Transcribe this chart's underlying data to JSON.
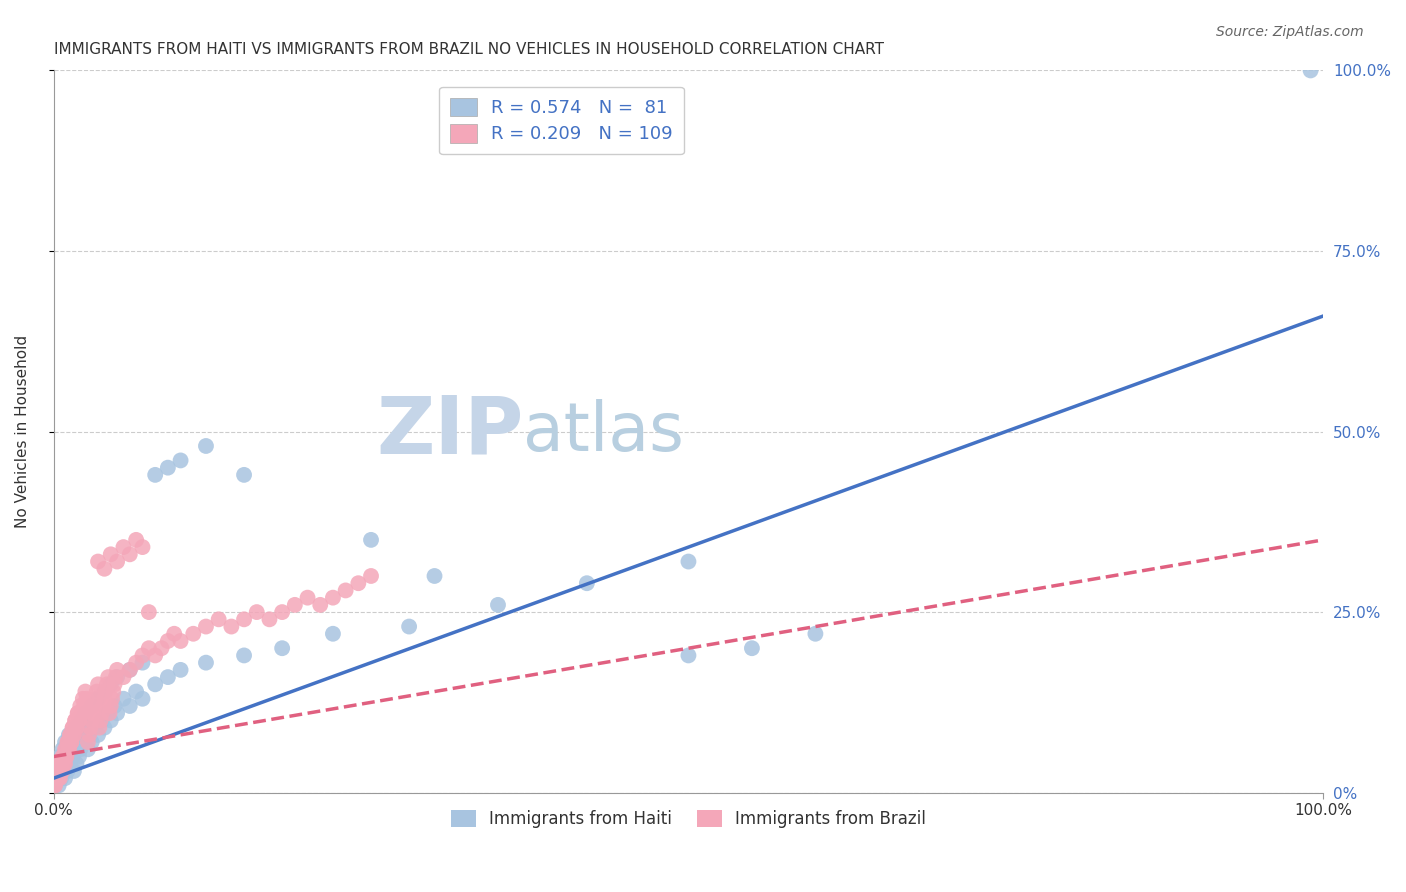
{
  "title": "IMMIGRANTS FROM HAITI VS IMMIGRANTS FROM BRAZIL NO VEHICLES IN HOUSEHOLD CORRELATION CHART",
  "source": "Source: ZipAtlas.com",
  "ylabel": "No Vehicles in Household",
  "series": [
    {
      "name": "Immigrants from Haiti",
      "R": 0.574,
      "N": 81,
      "color": "#a8c4e0",
      "line_color": "#4472c4",
      "line_style": "solid",
      "line_x0": 0.0,
      "line_y0": 0.02,
      "line_x1": 1.0,
      "line_y1": 0.66,
      "scatter_x": [
        0.001,
        0.002,
        0.003,
        0.004,
        0.005,
        0.006,
        0.007,
        0.008,
        0.009,
        0.01,
        0.011,
        0.012,
        0.013,
        0.014,
        0.015,
        0.016,
        0.017,
        0.018,
        0.019,
        0.02,
        0.021,
        0.022,
        0.023,
        0.024,
        0.025,
        0.027,
        0.03,
        0.032,
        0.035,
        0.038,
        0.04,
        0.042,
        0.045,
        0.048,
        0.05,
        0.055,
        0.06,
        0.065,
        0.07,
        0.08,
        0.09,
        0.1,
        0.12,
        0.15,
        0.18,
        0.22,
        0.28,
        0.35,
        0.42,
        0.5,
        0.003,
        0.004,
        0.005,
        0.006,
        0.007,
        0.008,
        0.009,
        0.01,
        0.012,
        0.015,
        0.018,
        0.022,
        0.025,
        0.03,
        0.035,
        0.04,
        0.045,
        0.05,
        0.06,
        0.07,
        0.08,
        0.09,
        0.1,
        0.12,
        0.15,
        0.5,
        0.55,
        0.6,
        0.25,
        0.3,
        0.99
      ],
      "scatter_y": [
        0.01,
        0.02,
        0.03,
        0.01,
        0.04,
        0.02,
        0.03,
        0.05,
        0.02,
        0.04,
        0.03,
        0.05,
        0.04,
        0.06,
        0.05,
        0.03,
        0.06,
        0.04,
        0.07,
        0.05,
        0.06,
        0.08,
        0.07,
        0.09,
        0.08,
        0.06,
        0.07,
        0.09,
        0.08,
        0.1,
        0.09,
        0.11,
        0.1,
        0.12,
        0.11,
        0.13,
        0.12,
        0.14,
        0.13,
        0.15,
        0.16,
        0.17,
        0.18,
        0.19,
        0.2,
        0.22,
        0.23,
        0.26,
        0.29,
        0.32,
        0.02,
        0.03,
        0.05,
        0.04,
        0.06,
        0.05,
        0.07,
        0.06,
        0.08,
        0.07,
        0.09,
        0.1,
        0.11,
        0.12,
        0.13,
        0.14,
        0.15,
        0.16,
        0.17,
        0.18,
        0.44,
        0.45,
        0.46,
        0.48,
        0.44,
        0.19,
        0.2,
        0.22,
        0.35,
        0.3,
        1.0
      ]
    },
    {
      "name": "Immigrants from Brazil",
      "R": 0.209,
      "N": 109,
      "color": "#f4a7b9",
      "line_color": "#e06080",
      "line_style": "dashed",
      "line_x0": 0.0,
      "line_y0": 0.05,
      "line_x1": 1.0,
      "line_y1": 0.35,
      "scatter_x": [
        0.001,
        0.002,
        0.003,
        0.003,
        0.004,
        0.005,
        0.005,
        0.006,
        0.007,
        0.008,
        0.009,
        0.01,
        0.01,
        0.011,
        0.012,
        0.013,
        0.014,
        0.015,
        0.016,
        0.017,
        0.018,
        0.019,
        0.02,
        0.021,
        0.022,
        0.023,
        0.024,
        0.025,
        0.026,
        0.027,
        0.028,
        0.029,
        0.03,
        0.031,
        0.032,
        0.033,
        0.034,
        0.035,
        0.036,
        0.037,
        0.038,
        0.039,
        0.04,
        0.041,
        0.042,
        0.043,
        0.044,
        0.045,
        0.046,
        0.047,
        0.048,
        0.049,
        0.05,
        0.055,
        0.06,
        0.065,
        0.07,
        0.075,
        0.08,
        0.085,
        0.09,
        0.095,
        0.1,
        0.11,
        0.12,
        0.13,
        0.14,
        0.15,
        0.16,
        0.17,
        0.18,
        0.19,
        0.2,
        0.21,
        0.22,
        0.23,
        0.24,
        0.25,
        0.001,
        0.002,
        0.003,
        0.004,
        0.005,
        0.006,
        0.007,
        0.008,
        0.009,
        0.01,
        0.011,
        0.012,
        0.013,
        0.014,
        0.015,
        0.016,
        0.017,
        0.018,
        0.019,
        0.02,
        0.025,
        0.03,
        0.035,
        0.04,
        0.045,
        0.05,
        0.055,
        0.06,
        0.065,
        0.07,
        0.075
      ],
      "scatter_y": [
        0.01,
        0.02,
        0.03,
        0.02,
        0.04,
        0.03,
        0.02,
        0.04,
        0.03,
        0.05,
        0.04,
        0.06,
        0.05,
        0.07,
        0.06,
        0.08,
        0.07,
        0.09,
        0.08,
        0.1,
        0.09,
        0.11,
        0.1,
        0.12,
        0.11,
        0.13,
        0.12,
        0.14,
        0.13,
        0.07,
        0.08,
        0.09,
        0.1,
        0.11,
        0.12,
        0.13,
        0.14,
        0.15,
        0.09,
        0.1,
        0.11,
        0.12,
        0.13,
        0.14,
        0.15,
        0.16,
        0.11,
        0.12,
        0.13,
        0.14,
        0.15,
        0.16,
        0.17,
        0.16,
        0.17,
        0.18,
        0.19,
        0.2,
        0.19,
        0.2,
        0.21,
        0.22,
        0.21,
        0.22,
        0.23,
        0.24,
        0.23,
        0.24,
        0.25,
        0.24,
        0.25,
        0.26,
        0.27,
        0.26,
        0.27,
        0.28,
        0.29,
        0.3,
        0.01,
        0.02,
        0.03,
        0.02,
        0.04,
        0.03,
        0.05,
        0.04,
        0.06,
        0.05,
        0.07,
        0.06,
        0.08,
        0.07,
        0.09,
        0.08,
        0.1,
        0.09,
        0.11,
        0.1,
        0.12,
        0.11,
        0.32,
        0.31,
        0.33,
        0.32,
        0.34,
        0.33,
        0.35,
        0.34,
        0.25
      ]
    }
  ],
  "xlim": [
    0.0,
    1.0
  ],
  "ylim": [
    0.0,
    1.0
  ],
  "grid_color": "#cccccc",
  "background_color": "#ffffff",
  "watermark_left": "ZIP",
  "watermark_right": "atlas",
  "watermark_color_left": "#c5d5e8",
  "watermark_color_right": "#b8cfe0",
  "legend_box_color_haiti": "#a8c4e0",
  "legend_box_color_brazil": "#f4a7b9",
  "title_fontsize": 11,
  "axis_label_fontsize": 11
}
